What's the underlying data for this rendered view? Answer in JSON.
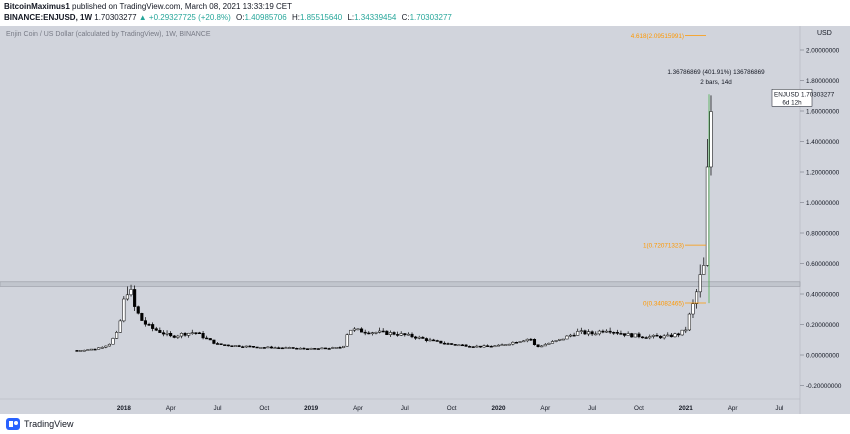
{
  "header": {
    "author": "BitcoinMaximus1",
    "published_text": "published on TradingView.com, March 08, 2021 13:33:19 CET",
    "symbol_line": "BINANCE:ENJUSD, 1W",
    "price": "1.70303277",
    "change_arrow": "▲",
    "change": "+0.29327725 (+20.8%)",
    "o_label": "O:",
    "o_value": "1.40985706",
    "h_label": "H:",
    "h_value": "1.85515640",
    "l_label": "L:",
    "l_value": "1.34339454",
    "c_label": "C:",
    "c_value": "1.70303277"
  },
  "footer": {
    "brand": "TradingView"
  },
  "colors": {
    "plot_bg": "#d1d4dc",
    "candle_up_body": "#ffffff",
    "candle_down_body": "#000000",
    "wick": "#000000",
    "fib": "#ff9800",
    "measure": "#4caf50",
    "zone": "#b2b5be"
  },
  "chart_data": {
    "type": "candlestick",
    "title": "Enjin Coin / US Dollar (calculated by TradingView), 1W, BINANCE",
    "currency": "USD",
    "ylim": [
      -0.3,
      2.1
    ],
    "y_ticks": [
      {
        "value": 2.0,
        "label": "2.00000000"
      },
      {
        "value": 1.8,
        "label": "1.80000000"
      },
      {
        "value": 1.6,
        "label": "1.60000000"
      },
      {
        "value": 1.4,
        "label": "1.40000000"
      },
      {
        "value": 1.2,
        "label": "1.20000000"
      },
      {
        "value": 1.0,
        "label": "1.00000000"
      },
      {
        "value": 0.8,
        "label": "0.80000000"
      },
      {
        "value": 0.6,
        "label": "0.60000000"
      },
      {
        "value": 0.4,
        "label": "0.40000000"
      },
      {
        "value": 0.2,
        "label": "0.20000000"
      },
      {
        "value": 0.0,
        "label": "0.00000000"
      },
      {
        "value": -0.2,
        "label": "-0.20000000"
      }
    ],
    "x_ticks": [
      {
        "label": "2018",
        "t": 2018.0
      },
      {
        "label": "Apr",
        "t": 2018.25
      },
      {
        "label": "Jul",
        "t": 2018.5
      },
      {
        "label": "Oct",
        "t": 2018.75
      },
      {
        "label": "2019",
        "t": 2019.0
      },
      {
        "label": "Apr",
        "t": 2019.25
      },
      {
        "label": "Jul",
        "t": 2019.5
      },
      {
        "label": "Oct",
        "t": 2019.75
      },
      {
        "label": "2020",
        "t": 2020.0
      },
      {
        "label": "Apr",
        "t": 2020.25
      },
      {
        "label": "Jul",
        "t": 2020.5
      },
      {
        "label": "Oct",
        "t": 2020.75
      },
      {
        "label": "2021",
        "t": 2021.0
      },
      {
        "label": "Apr",
        "t": 2021.25
      },
      {
        "label": "Jul",
        "t": 2021.5
      }
    ],
    "price_label": {
      "symbol": "ENJUSD",
      "value": "1.70303277",
      "countdown": "6d 12h"
    },
    "support_zone": [
      0.45,
      0.48
    ],
    "fib_levels": [
      {
        "label": "4.618(2.09515991)",
        "value": 2.095
      },
      {
        "label": "1(0.72071323)",
        "value": 0.7207
      },
      {
        "label": "0(0.34082465)",
        "value": 0.3408
      }
    ],
    "measure": {
      "line1": "1.36786869 (401.91%) 136786869",
      "line2": "2 bars, 14d",
      "from": 0.34,
      "to": 1.71
    },
    "anchors": [
      [
        2017.75,
        0.03
      ],
      [
        2017.85,
        0.04
      ],
      [
        2017.92,
        0.07
      ],
      [
        2017.97,
        0.15
      ],
      [
        2018.0,
        0.35
      ],
      [
        2018.02,
        0.43
      ],
      [
        2018.04,
        0.4
      ],
      [
        2018.06,
        0.3
      ],
      [
        2018.1,
        0.22
      ],
      [
        2018.14,
        0.18
      ],
      [
        2018.2,
        0.15
      ],
      [
        2018.25,
        0.12
      ],
      [
        2018.32,
        0.14
      ],
      [
        2018.38,
        0.15
      ],
      [
        2018.45,
        0.1
      ],
      [
        2018.5,
        0.07
      ],
      [
        2018.6,
        0.06
      ],
      [
        2018.75,
        0.05
      ],
      [
        2018.9,
        0.045
      ],
      [
        2019.0,
        0.04
      ],
      [
        2019.1,
        0.045
      ],
      [
        2019.17,
        0.05
      ],
      [
        2019.2,
        0.17
      ],
      [
        2019.25,
        0.16
      ],
      [
        2019.33,
        0.15
      ],
      [
        2019.45,
        0.14
      ],
      [
        2019.55,
        0.12
      ],
      [
        2019.65,
        0.09
      ],
      [
        2019.75,
        0.07
      ],
      [
        2019.9,
        0.055
      ],
      [
        2020.0,
        0.06
      ],
      [
        2020.1,
        0.09
      ],
      [
        2020.17,
        0.11
      ],
      [
        2020.2,
        0.05
      ],
      [
        2020.25,
        0.07
      ],
      [
        2020.33,
        0.1
      ],
      [
        2020.42,
        0.15
      ],
      [
        2020.5,
        0.14
      ],
      [
        2020.58,
        0.17
      ],
      [
        2020.63,
        0.15
      ],
      [
        2020.7,
        0.13
      ],
      [
        2020.8,
        0.12
      ],
      [
        2020.9,
        0.12
      ],
      [
        2020.97,
        0.14
      ],
      [
        2021.0,
        0.17
      ],
      [
        2021.02,
        0.26
      ],
      [
        2021.04,
        0.33
      ],
      [
        2021.06,
        0.42
      ],
      [
        2021.08,
        0.52
      ],
      [
        2021.1,
        0.58
      ],
      [
        2021.12,
        1.35
      ],
      [
        2021.14,
        1.7
      ]
    ]
  }
}
